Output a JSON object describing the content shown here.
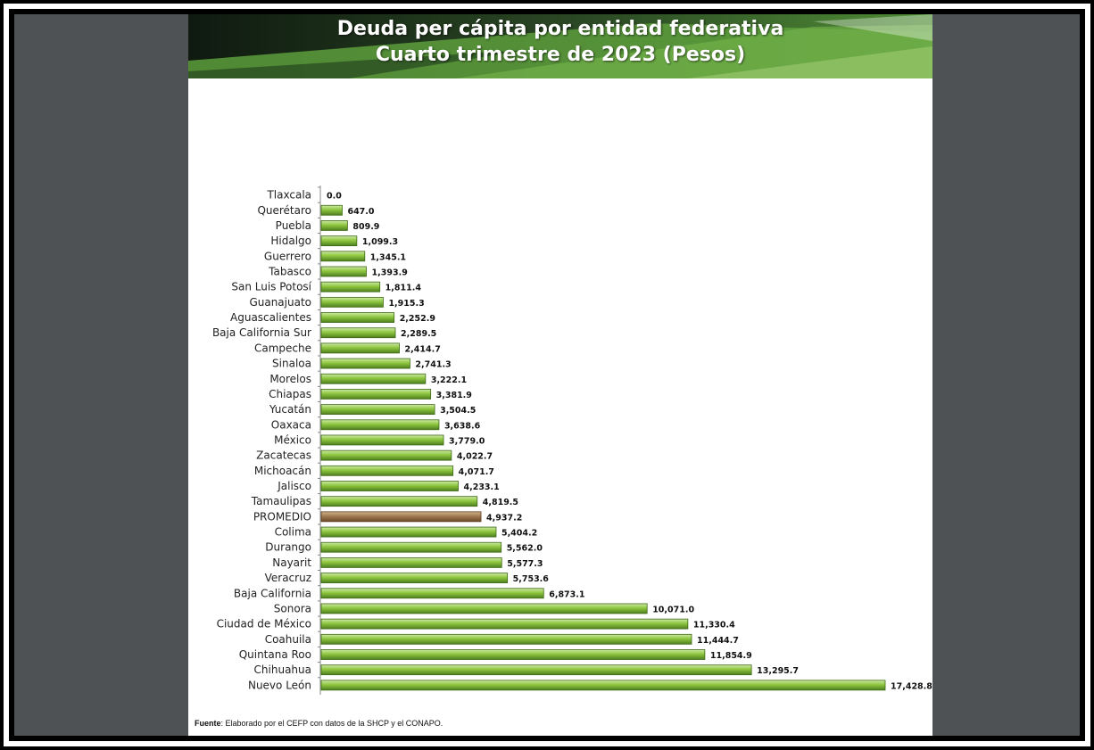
{
  "header": {
    "title_line1": "Deuda per cápita por entidad federativa",
    "title_line2": "Cuarto trimestre de 2023 (Pesos)"
  },
  "colors": {
    "bar": "#8ec63f",
    "bar_highlight": "#a17a50",
    "header_dark": "#1b2a1b",
    "header_green": "#5a9a3a"
  },
  "chart_data": {
    "type": "bar",
    "orientation": "horizontal",
    "title": "Deuda per cápita por entidad federativa Cuarto trimestre de 2023 (Pesos)",
    "xlabel": "",
    "ylabel": "",
    "xlim": [
      0,
      17428.8
    ],
    "grid": false,
    "highlight_category": "PROMEDIO",
    "categories": [
      "Tlaxcala",
      "Querétaro",
      "Puebla",
      "Hidalgo",
      "Guerrero",
      "Tabasco",
      "San Luis Potosí",
      "Guanajuato",
      "Aguascalientes",
      "Baja California Sur",
      "Campeche",
      "Sinaloa",
      "Morelos",
      "Chiapas",
      "Yucatán",
      "Oaxaca",
      "México",
      "Zacatecas",
      "Michoacán",
      "Jalisco",
      "Tamaulipas",
      "PROMEDIO",
      "Colima",
      "Durango",
      "Nayarit",
      "Veracruz",
      "Baja California",
      "Sonora",
      "Ciudad de México",
      "Coahuila",
      "Quintana Roo",
      "Chihuahua",
      "Nuevo León"
    ],
    "values": [
      0.0,
      647.0,
      809.9,
      1099.3,
      1345.1,
      1393.9,
      1811.4,
      1915.3,
      2252.9,
      2289.5,
      2414.7,
      2741.3,
      3222.1,
      3381.9,
      3504.5,
      3638.6,
      3779.0,
      4022.7,
      4071.7,
      4233.1,
      4819.5,
      4937.2,
      5404.2,
      5562.0,
      5577.3,
      5753.6,
      6873.1,
      10071.0,
      11330.4,
      11444.7,
      11854.9,
      13295.7,
      17428.8
    ],
    "value_labels": [
      "0.0",
      "647.0",
      "809.9",
      "1,099.3",
      "1,345.1",
      "1,393.9",
      "1,811.4",
      "1,915.3",
      "2,252.9",
      "2,289.5",
      "2,414.7",
      "2,741.3",
      "3,222.1",
      "3,381.9",
      "3,504.5",
      "3,638.6",
      "3,779.0",
      "4,022.7",
      "4,071.7",
      "4,233.1",
      "4,819.5",
      "4,937.2",
      "5,404.2",
      "5,562.0",
      "5,577.3",
      "5,753.6",
      "6,873.1",
      "10,071.0",
      "11,330.4",
      "11,444.7",
      "11,854.9",
      "13,295.7",
      "17,428.8"
    ]
  },
  "footer": {
    "source_label": "Fuente",
    "source_text": ": Elaborado por el CEFP con datos de la SHCP y el CONAPO."
  }
}
